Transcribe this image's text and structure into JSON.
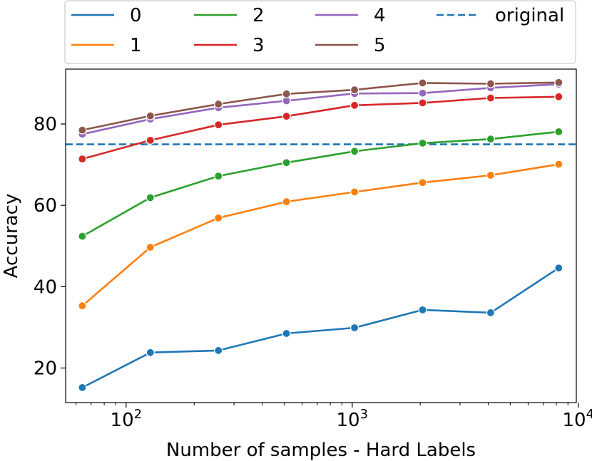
{
  "chart_data": {
    "type": "line",
    "title": "",
    "xlabel": "Number of samples - Hard Labels",
    "ylabel": "Accuracy",
    "xscale": "log",
    "xlim": [
      54,
      9800
    ],
    "ylim": [
      11.5,
      93.5
    ],
    "x": [
      64,
      128,
      256,
      512,
      1024,
      2048,
      4096,
      8192
    ],
    "xticks": [
      {
        "value": 100,
        "base": "10",
        "exp": "2"
      },
      {
        "value": 1000,
        "base": "10",
        "exp": "3"
      },
      {
        "value": 10000,
        "base": "10",
        "exp": "4"
      }
    ],
    "yticks": [
      20,
      40,
      60,
      80
    ],
    "series": [
      {
        "name": "0",
        "color": "#1f77b4",
        "values": [
          15.2,
          23.8,
          24.3,
          28.5,
          29.9,
          34.3,
          33.6,
          44.6
        ]
      },
      {
        "name": "1",
        "color": "#ff7f0e",
        "values": [
          35.3,
          49.7,
          56.9,
          60.9,
          63.3,
          65.6,
          67.4,
          70.1
        ]
      },
      {
        "name": "2",
        "color": "#2ca02c",
        "values": [
          52.4,
          61.9,
          67.2,
          70.5,
          73.3,
          75.3,
          76.3,
          78.1
        ]
      },
      {
        "name": "3",
        "color": "#d62728",
        "values": [
          71.4,
          76.0,
          79.8,
          81.9,
          84.6,
          85.2,
          86.4,
          86.7
        ]
      },
      {
        "name": "4",
        "color": "#9467bd",
        "values": [
          77.5,
          81.2,
          84.0,
          85.7,
          87.5,
          87.6,
          88.9,
          89.8
        ]
      },
      {
        "name": "5",
        "color": "#8c564b",
        "values": [
          78.5,
          82.0,
          84.9,
          87.4,
          88.4,
          90.1,
          89.9,
          90.2
        ]
      }
    ],
    "reference": {
      "name": "original",
      "color": "#1f77b4",
      "value": 75.0,
      "style": "dashed"
    },
    "legend": {
      "position": "top",
      "columns": 4,
      "order": [
        "0",
        "1",
        "2",
        "3",
        "4",
        "5",
        "original"
      ]
    }
  }
}
